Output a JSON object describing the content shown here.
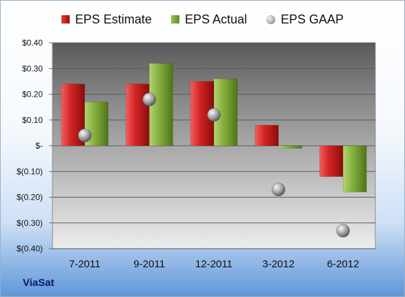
{
  "chart_data": {
    "type": "bar",
    "title": "",
    "xlabel": "",
    "ylabel": "",
    "categories": [
      "7-2011",
      "9-2011",
      "12-2011",
      "3-2012",
      "6-2012"
    ],
    "series": [
      {
        "name": "EPS Estimate",
        "kind": "bar",
        "color": "#c81e1e",
        "values": [
          0.24,
          0.24,
          0.25,
          0.08,
          -0.12
        ]
      },
      {
        "name": "EPS Actual",
        "kind": "bar",
        "color": "#7aa83a",
        "values": [
          0.17,
          0.32,
          0.26,
          -0.01,
          -0.18
        ]
      },
      {
        "name": "EPS GAAP",
        "kind": "point",
        "color": "#9a9a9a",
        "values": [
          0.04,
          0.18,
          0.12,
          -0.17,
          -0.33
        ]
      }
    ],
    "ylim": [
      -0.4,
      0.4
    ],
    "yticks": [
      0.4,
      0.3,
      0.2,
      0.1,
      0,
      -0.1,
      -0.2,
      -0.3,
      -0.4
    ],
    "ytick_labels": [
      "$0.40",
      "$0.30",
      "$0.20",
      "$0.10",
      "$-",
      "$(0.10)",
      "$(0.20)",
      "$(0.30)",
      "$(0.40)"
    ],
    "grid": true,
    "legend_position": "top"
  },
  "company": "ViaSat"
}
